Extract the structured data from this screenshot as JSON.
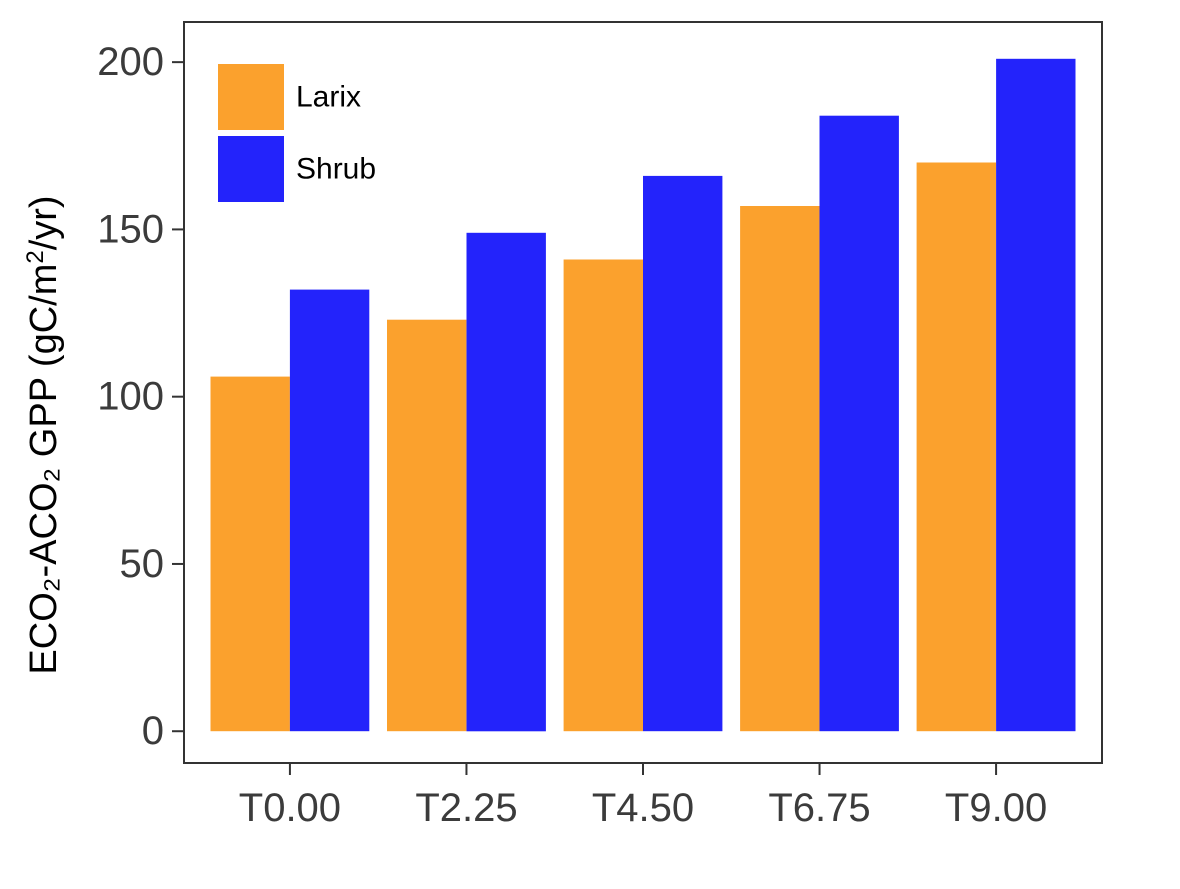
{
  "chart_data": {
    "type": "bar",
    "title": "",
    "xlabel": "",
    "ylabel": "ECO₂-ACO₂ GPP (gC/m²/yr)",
    "ylabel_parts": {
      "main": "ECO₂-ACO₂ GPP (gC/m",
      "sup": "2",
      "tail": "/yr)"
    },
    "categories": [
      "T0.00",
      "T2.25",
      "T4.50",
      "T6.75",
      "T9.00"
    ],
    "series": [
      {
        "name": "Larix",
        "color": "#FBA12D",
        "values": [
          106,
          123,
          141,
          157,
          170
        ]
      },
      {
        "name": "Shrub",
        "color": "#2323FB",
        "values": [
          132,
          149,
          166,
          184,
          201
        ]
      }
    ],
    "ylim": [
      -9.5,
      212
    ],
    "yticks": [
      0,
      50,
      100,
      150,
      200
    ],
    "grid": false,
    "legend_position": "top-left"
  }
}
